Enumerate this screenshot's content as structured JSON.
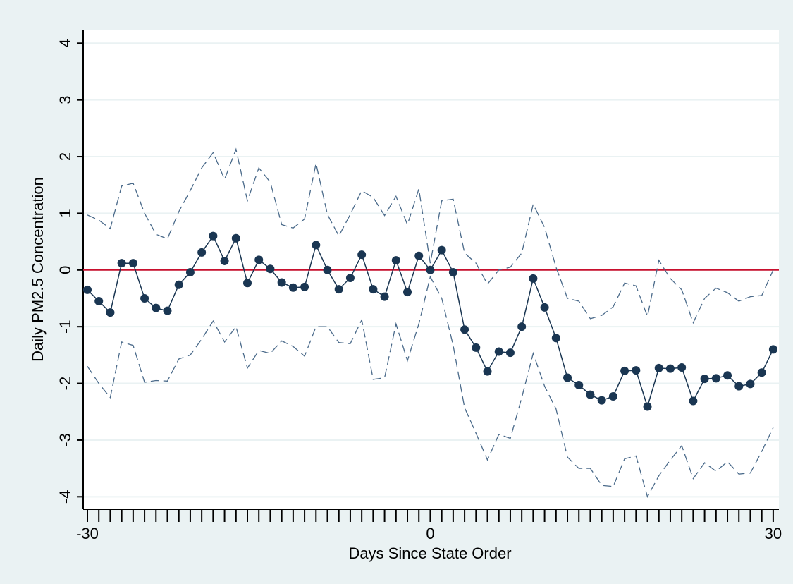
{
  "chart_data": {
    "type": "line",
    "x_label": "Days Since State Order",
    "y_label": "Daily PM2.5 Concentration",
    "x": [
      -30,
      -29,
      -28,
      -27,
      -26,
      -25,
      -24,
      -23,
      -22,
      -21,
      -20,
      -19,
      -18,
      -17,
      -16,
      -15,
      -14,
      -13,
      -12,
      -11,
      -10,
      -9,
      -8,
      -7,
      -6,
      -5,
      -4,
      -3,
      -2,
      -1,
      0,
      1,
      2,
      3,
      4,
      5,
      6,
      7,
      8,
      9,
      10,
      11,
      12,
      13,
      14,
      15,
      16,
      17,
      18,
      19,
      20,
      21,
      22,
      23,
      24,
      25,
      26,
      27,
      28,
      29,
      30
    ],
    "series": [
      {
        "color": "#1a3652",
        "markers": true,
        "dash": false,
        "values": [
          -0.35,
          -0.55,
          -0.75,
          0.12,
          0.12,
          -0.5,
          -0.67,
          -0.72,
          -0.26,
          -0.04,
          0.31,
          0.6,
          0.16,
          0.56,
          -0.23,
          0.18,
          0.02,
          -0.22,
          -0.31,
          -0.3,
          0.44,
          0.0,
          -0.34,
          -0.14,
          0.27,
          -0.34,
          -0.47,
          0.17,
          -0.39,
          0.25,
          0.0,
          0.35,
          -0.04,
          -1.05,
          -1.37,
          -1.79,
          -1.44,
          -1.46,
          -1.0,
          -0.15,
          -0.66,
          -1.2,
          -1.9,
          -2.03,
          -2.2,
          -2.3,
          -2.23,
          -1.78,
          -1.77,
          -2.41,
          -1.73,
          -1.74,
          -1.72,
          -2.31,
          -1.92,
          -1.91,
          -1.86,
          -2.05,
          -2.01,
          -1.81,
          -1.4
        ]
      },
      {
        "color": "#4a6a8a",
        "markers": false,
        "dash": true,
        "values": [
          0.97,
          0.88,
          0.73,
          1.48,
          1.53,
          1.0,
          0.63,
          0.55,
          1.03,
          1.4,
          1.8,
          2.07,
          1.6,
          2.13,
          1.22,
          1.8,
          1.55,
          0.8,
          0.74,
          0.9,
          1.88,
          0.98,
          0.6,
          0.98,
          1.4,
          1.28,
          0.96,
          1.3,
          0.8,
          1.43,
          0.12,
          1.22,
          1.25,
          0.3,
          0.12,
          -0.25,
          0.0,
          0.05,
          0.3,
          1.16,
          0.75,
          0.05,
          -0.5,
          -0.55,
          -0.86,
          -0.8,
          -0.65,
          -0.23,
          -0.28,
          -0.82,
          0.17,
          -0.15,
          -0.35,
          -0.93,
          -0.5,
          -0.32,
          -0.4,
          -0.55,
          -0.47,
          -0.45,
          0.0
        ]
      },
      {
        "color": "#4a6a8a",
        "markers": false,
        "dash": true,
        "values": [
          -1.7,
          -2.0,
          -2.25,
          -1.27,
          -1.33,
          -1.98,
          -1.95,
          -1.96,
          -1.57,
          -1.5,
          -1.22,
          -0.9,
          -1.27,
          -1.0,
          -1.73,
          -1.42,
          -1.47,
          -1.25,
          -1.35,
          -1.52,
          -1.0,
          -1.0,
          -1.28,
          -1.3,
          -0.88,
          -1.93,
          -1.9,
          -0.95,
          -1.6,
          -0.95,
          -0.12,
          -0.5,
          -1.33,
          -2.43,
          -2.88,
          -3.35,
          -2.9,
          -2.97,
          -2.25,
          -1.47,
          -2.05,
          -2.45,
          -3.3,
          -3.5,
          -3.5,
          -3.8,
          -3.82,
          -3.33,
          -3.28,
          -4.0,
          -3.63,
          -3.35,
          -3.1,
          -3.68,
          -3.4,
          -3.55,
          -3.38,
          -3.6,
          -3.58,
          -3.2,
          -2.78
        ]
      }
    ],
    "reference_line": {
      "value": 0,
      "color": "#c8102e"
    },
    "xlim": [
      -30.37,
      30.5
    ],
    "ylim": [
      -4.22,
      4.24
    ],
    "xticks": [
      -30,
      0,
      30
    ],
    "xminorticks": [
      -29,
      -28,
      -27,
      -26,
      -25,
      -24,
      -23,
      -22,
      -21,
      -20,
      -19,
      -18,
      -17,
      -16,
      -15,
      -14,
      -13,
      -12,
      -11,
      -10,
      -9,
      -8,
      -7,
      -6,
      -5,
      -4,
      -3,
      -2,
      -1,
      1,
      2,
      3,
      4,
      5,
      6,
      7,
      8,
      9,
      10,
      11,
      12,
      13,
      14,
      15,
      16,
      17,
      18,
      19,
      20,
      21,
      22,
      23,
      24,
      25,
      26,
      27,
      28,
      29
    ],
    "yticks": [
      -4,
      -3,
      -2,
      -1,
      0,
      1,
      2,
      3,
      4
    ],
    "grid": true
  }
}
